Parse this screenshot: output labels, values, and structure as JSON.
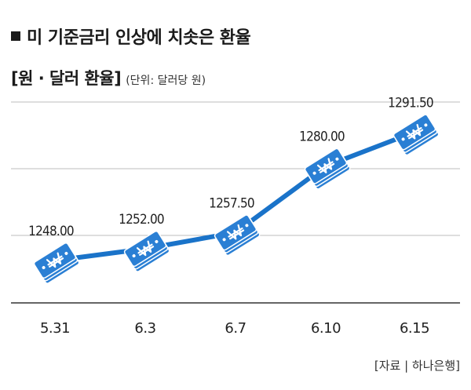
{
  "header": {
    "title": "미 기준금리 인상에 치솟은 환율",
    "subtitle": "[원 · 달러 환율]",
    "unit": "(단위: 달러당 원)"
  },
  "footer": {
    "source": "[자료 | 하나은행]"
  },
  "colors": {
    "line": "#1a73c9",
    "note_fill": "#2a7fd4",
    "note_stroke": "#ffffff",
    "grid": "#bdbdbd",
    "axis": "#333333"
  },
  "icons": {
    "marker": "won-banknote-stack-icon",
    "bullet": "square-bullet-icon"
  },
  "chart_data": {
    "type": "line",
    "title": "미 기준금리 인상에 치솟은 환율",
    "subtitle": "[원 · 달러 환율]",
    "unit": "(단위: 달러당 원)",
    "categories": [
      "5.31",
      "6.3",
      "6.7",
      "6.10",
      "6.15"
    ],
    "values": [
      1248.0,
      1252.0,
      1257.5,
      1280.0,
      1291.5
    ],
    "value_labels": [
      "1248.00",
      "1252.00",
      "1257.50",
      "1280.00",
      "1291.50"
    ],
    "grid": true,
    "legend": "none"
  }
}
